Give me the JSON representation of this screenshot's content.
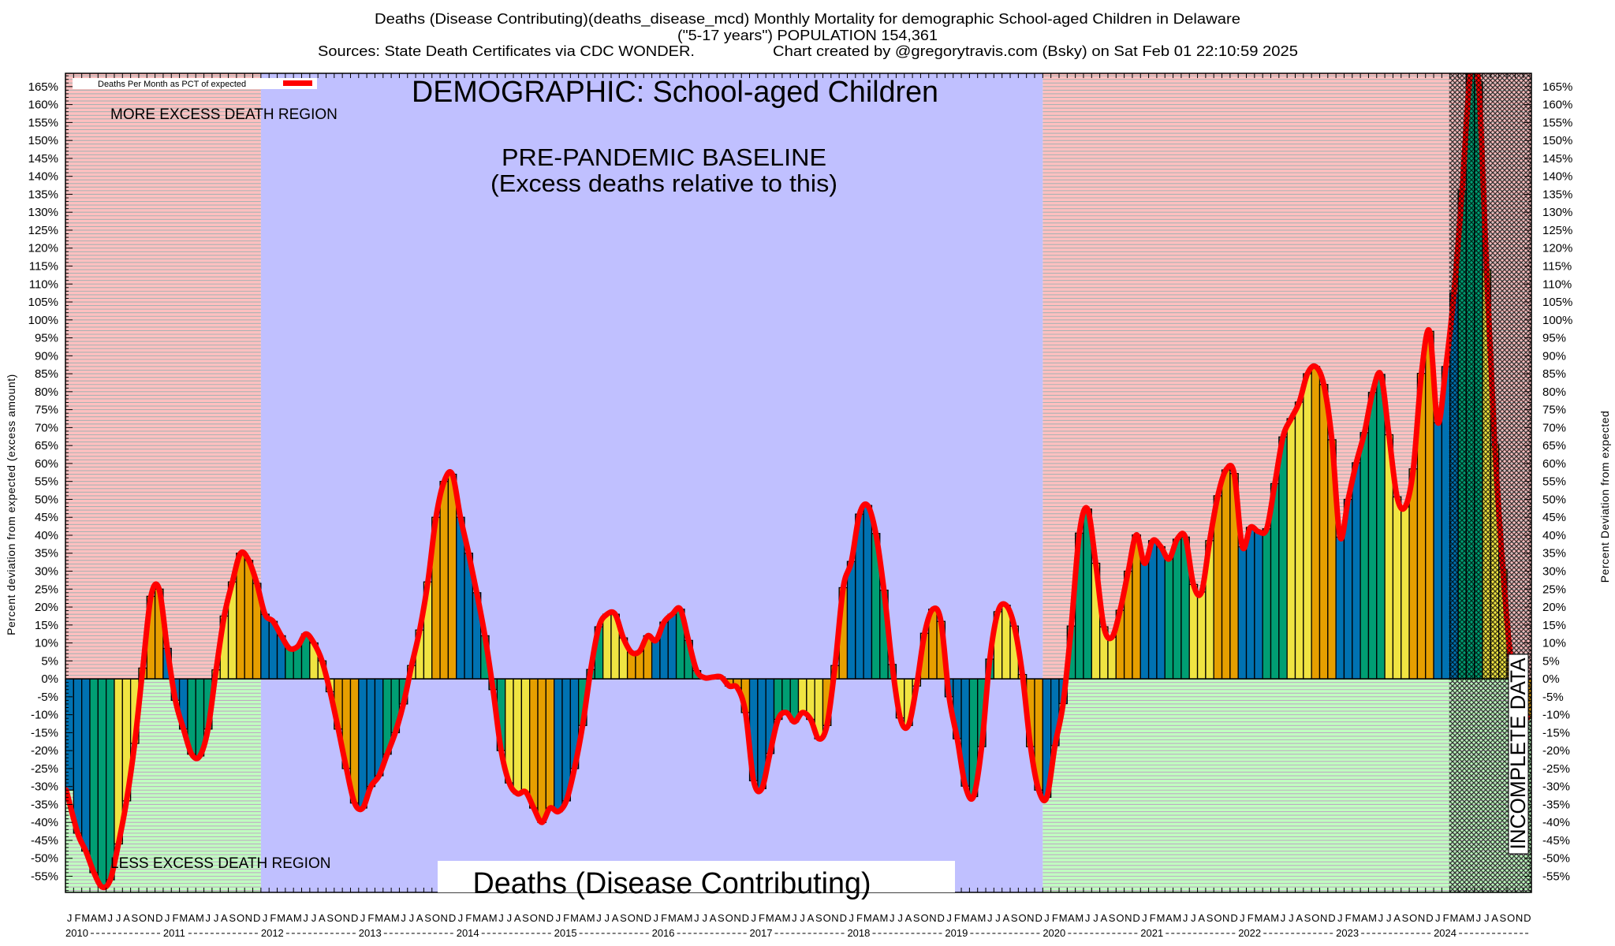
{
  "title": {
    "line1": "Deaths (Disease Contributing)(deaths_disease_mcd) Monthly Mortality for demographic School-aged Children in Delaware",
    "line2": "(\"5-17 years\") POPULATION 154,361",
    "sources": "Sources: State Death Certificates via CDC WONDER.",
    "credit": "Chart created by @gregorytravis.com (Bsky) on Sat Feb 01 22:10:59 2025"
  },
  "annotations": {
    "demographic": "DEMOGRAPHIC: School-aged Children",
    "baseline_line1": "PRE-PANDEMIC BASELINE",
    "baseline_line2": "(Excess deaths relative to this)",
    "more_region": "MORE EXCESS DEATH REGION",
    "less_region": "LESS EXCESS DEATH REGION",
    "metric": "Deaths (Disease Contributing)",
    "incomplete": "INCOMPLETE DATA"
  },
  "legend": {
    "label": "Deaths Per Month as PCT of expected",
    "placement": "top-left"
  },
  "chart_data": {
    "type": "bar",
    "overlay": "line",
    "ylabel_left": "Percent deviation from expected (excess amount)",
    "ylabel_right": "Percent Deviation from expected",
    "ylim": [
      -59.5,
      168.7
    ],
    "y_ticks": [
      -55,
      -50,
      -45,
      -40,
      -35,
      -30,
      -25,
      -20,
      -15,
      -10,
      -5,
      0,
      5,
      10,
      15,
      20,
      25,
      30,
      35,
      40,
      45,
      50,
      55,
      60,
      65,
      70,
      75,
      80,
      85,
      90,
      95,
      100,
      105,
      110,
      115,
      120,
      125,
      130,
      135,
      140,
      145,
      150,
      155,
      160,
      165
    ],
    "y_tick_suffix": "%",
    "grid": "horizontal every 1% in excess/deficit regions",
    "month_letters": [
      "J",
      "F",
      "M",
      "A",
      "M",
      "J",
      "J",
      "A",
      "S",
      "O",
      "N",
      "D"
    ],
    "years": [
      "2010",
      "2011",
      "2012",
      "2013",
      "2014",
      "2015",
      "2016",
      "2017",
      "2018",
      "2019",
      "2020",
      "2021",
      "2022",
      "2023",
      "2024"
    ],
    "series": [
      {
        "name": "Deaths Per Month as PCT of expected",
        "values_by_year": {
          "2010": [
            -31,
            -43,
            -48,
            -54,
            -58,
            -56,
            -46,
            -34,
            -18,
            3,
            23,
            25
          ],
          "2011": [
            8.5,
            -6,
            -14,
            -21,
            -21.5,
            -14,
            2.5,
            17.5,
            27,
            35,
            33,
            26.6
          ],
          "2012": [
            18,
            16,
            12,
            8.5,
            9,
            12.5,
            10,
            5,
            -3.6,
            -14,
            -25,
            -34.6
          ],
          "2013": [
            -36,
            -30,
            -27,
            -21,
            -15,
            -7,
            3.7,
            13.6,
            27,
            45,
            55,
            57
          ],
          "2014": [
            45,
            35,
            24,
            12,
            -3,
            -20,
            -29,
            -32,
            -31.5,
            -36,
            -40,
            -36
          ],
          "2015": [
            -37,
            -34,
            -25,
            -13,
            2.6,
            14.5,
            18,
            18,
            11.4,
            7.4,
            7.7,
            12
          ],
          "2016": [
            10.7,
            15.8,
            18,
            19.4,
            10.7,
            2.3,
            0.3,
            0.5,
            0.5,
            -2,
            -2.5,
            -9.4
          ],
          "2017": [
            -28.4,
            -30.6,
            -20.8,
            -11.3,
            -9.4,
            -12,
            -9.4,
            -11.3,
            -16.7,
            -13,
            3.7,
            25.4
          ],
          "2018": [
            32.7,
            45.9,
            48.3,
            40.5,
            24.7,
            4,
            -10.9,
            -13,
            -2,
            12.7,
            19.4,
            16
          ],
          "2019": [
            -5,
            -16.7,
            -29.9,
            -32.8,
            -18.9,
            5.5,
            18.7,
            20.5,
            14.7,
            1.2,
            -18.9,
            -31
          ],
          "2020": [
            -33,
            -18.6,
            -6.9,
            14.7,
            40.6,
            47.3,
            32.2,
            14.5,
            11.6,
            19.1,
            30,
            40.1
          ],
          "2021": [
            32.2,
            38.5,
            36.8,
            33.4,
            38.9,
            39.5,
            26.3,
            24.2,
            38.5,
            51,
            58.2,
            57.2
          ],
          "2022": [
            36.8,
            42.2,
            41,
            41.8,
            54.4,
            67.4,
            72.5,
            77.1,
            85,
            87,
            82,
            66.6
          ],
          "2023": [
            39.5,
            50,
            60.2,
            68.6,
            79.8,
            84.8,
            68,
            50.7,
            47.9,
            58.5,
            85.1,
            96.8
          ],
          "2024": [
            71.4,
            87,
            107.5,
            136.2,
            168.5,
            166.4,
            113.9,
            65.2,
            30.5,
            5,
            -3,
            -11
          ]
        }
      }
    ],
    "quarter_colors": {
      "Q1": "#0072b2",
      "Q2": "#009e73",
      "Q3": "#f0e442",
      "Q4": "#e69f00"
    },
    "line_color": "#ff0000",
    "regions": {
      "excess_color": "#ffc0c0",
      "deficit_color": "#c0ffc0",
      "baseline_color": "#c0c0ff",
      "baseline_from": "2012-01",
      "baseline_to": "2019-12",
      "incomplete_from": "2024-03"
    }
  }
}
